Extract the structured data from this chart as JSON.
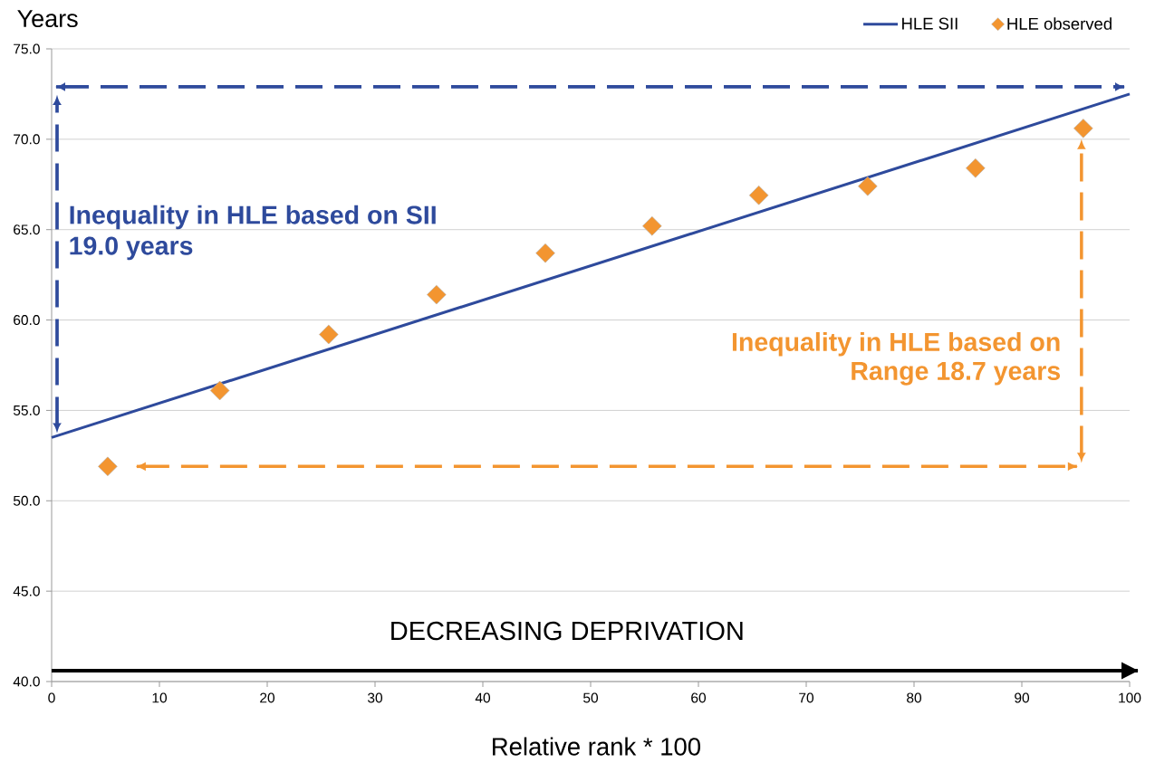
{
  "chart_data": {
    "type": "scatter",
    "xlabel": "Relative rank * 100",
    "ylabel": "Years",
    "annotations": [
      "Inequality in HLE based on SII 19.0 years",
      "Inequality in HLE based on Range 18.7 years",
      "DECREASING DEPRIVATION"
    ],
    "xlim": [
      0,
      100
    ],
    "xticks": [
      0,
      10,
      20,
      30,
      40,
      50,
      60,
      70,
      80,
      90,
      100
    ],
    "ylim": [
      40,
      75
    ],
    "yticks": [
      {
        "value": 40,
        "label": "40.0"
      },
      {
        "value": 45,
        "label": "45.0"
      },
      {
        "value": 50,
        "label": "50.0"
      },
      {
        "value": 55,
        "label": "55.0"
      },
      {
        "value": 60,
        "label": "60.0"
      },
      {
        "value": 65,
        "label": "65.0"
      },
      {
        "value": 70,
        "label": "70.0"
      },
      {
        "value": 75,
        "label": "75.0"
      }
    ],
    "grid": "y",
    "legend": "top right",
    "ref_lines": [
      {
        "axis": "y",
        "value": 72.9,
        "color": "#2e4a9c",
        "line_style": "dashed"
      },
      {
        "axis": "y",
        "value": 51.9,
        "color": "#f39530",
        "line_style": "dashed"
      },
      {
        "axis": "y",
        "value": 40.6,
        "color": "#000000",
        "line_style": "solid"
      }
    ],
    "series": [
      {
        "name": "HLE SII",
        "type": "line",
        "line_style": "solid",
        "color": "#2e4a9c",
        "x": [
          0,
          100
        ],
        "values": [
          53.5,
          72.5
        ]
      },
      {
        "name": "HLE observed",
        "marker": "diamond",
        "color": "#f39530",
        "x": [
          5.2,
          15.6,
          25.7,
          35.7,
          45.8,
          55.7,
          65.6,
          75.7,
          85.7,
          95.7
        ],
        "values": [
          51.9,
          56.1,
          59.2,
          61.4,
          63.7,
          65.2,
          66.9,
          67.4,
          68.4,
          70.6
        ]
      }
    ]
  }
}
